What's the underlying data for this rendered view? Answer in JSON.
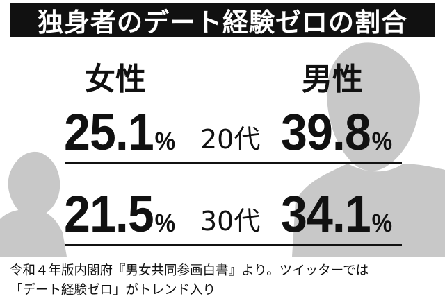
{
  "title": "独身者のデート経験ゼロの割合",
  "labels": {
    "female": "女性",
    "male": "男性"
  },
  "rows": [
    {
      "age": "20代",
      "female_value": "25.1",
      "male_value": "39.8"
    },
    {
      "age": "30代",
      "female_value": "21.5",
      "male_value": "34.1"
    }
  ],
  "percent_sign": "%",
  "caption": {
    "line1": "令和４年版内閣府『男女共同参画白書』より。ツイッターでは",
    "line2": "「デート経験ゼロ」がトレンド入り"
  },
  "colors": {
    "title_bg": "#111111",
    "silhouette": "#c8c8c8",
    "text": "#111111"
  }
}
